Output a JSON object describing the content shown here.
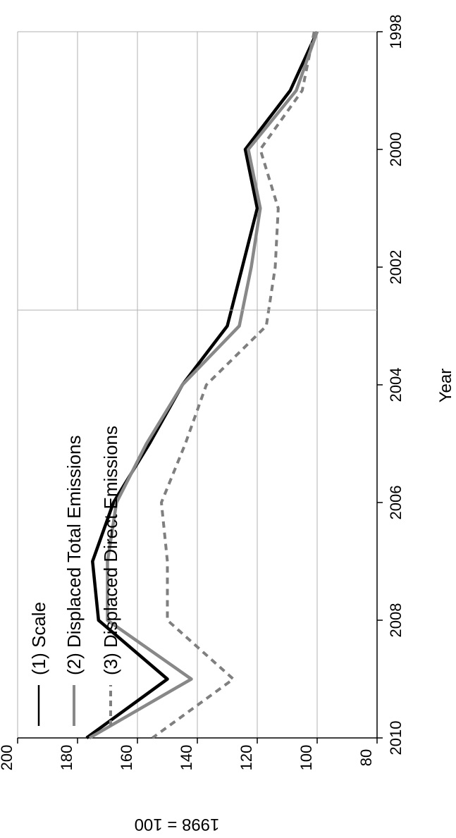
{
  "chart_data": {
    "type": "line",
    "orientation": "rotated-90-clockwise",
    "title": "",
    "xlabel": "Year",
    "ylabel": "1998 = 100",
    "xlim": [
      1998,
      2010
    ],
    "ylim": [
      80,
      200
    ],
    "x_ticks": [
      "1998",
      "2000",
      "2002",
      "2004",
      "2006",
      "2008",
      "2010"
    ],
    "y_ticks": [
      "80",
      "100",
      "120",
      "140",
      "160",
      "180",
      "200"
    ],
    "grid": true,
    "legend_position": "top-left",
    "x": [
      1998,
      1999,
      2000,
      2001,
      2002,
      2003,
      2004,
      2005,
      2006,
      2007,
      2008,
      2009,
      2010
    ],
    "series": [
      {
        "name": "(1) Scale",
        "values": [
          100,
          109,
          124,
          120,
          125,
          130,
          145,
          156,
          168,
          175,
          173,
          150,
          177
        ],
        "color": "#000000",
        "style": "solid"
      },
      {
        "name": "(2) Displaced Total Emissions",
        "values": [
          100,
          107,
          123,
          119,
          122,
          126,
          145,
          157,
          167,
          170,
          170,
          142,
          176
        ],
        "color": "#888888",
        "style": "solid"
      },
      {
        "name": "(3) Displaced Direct Emissions",
        "values": [
          101,
          105,
          119,
          113,
          114,
          117,
          137,
          144,
          152,
          150,
          150,
          128,
          155
        ],
        "color": "#7f7f7f",
        "style": "dashed"
      }
    ]
  }
}
